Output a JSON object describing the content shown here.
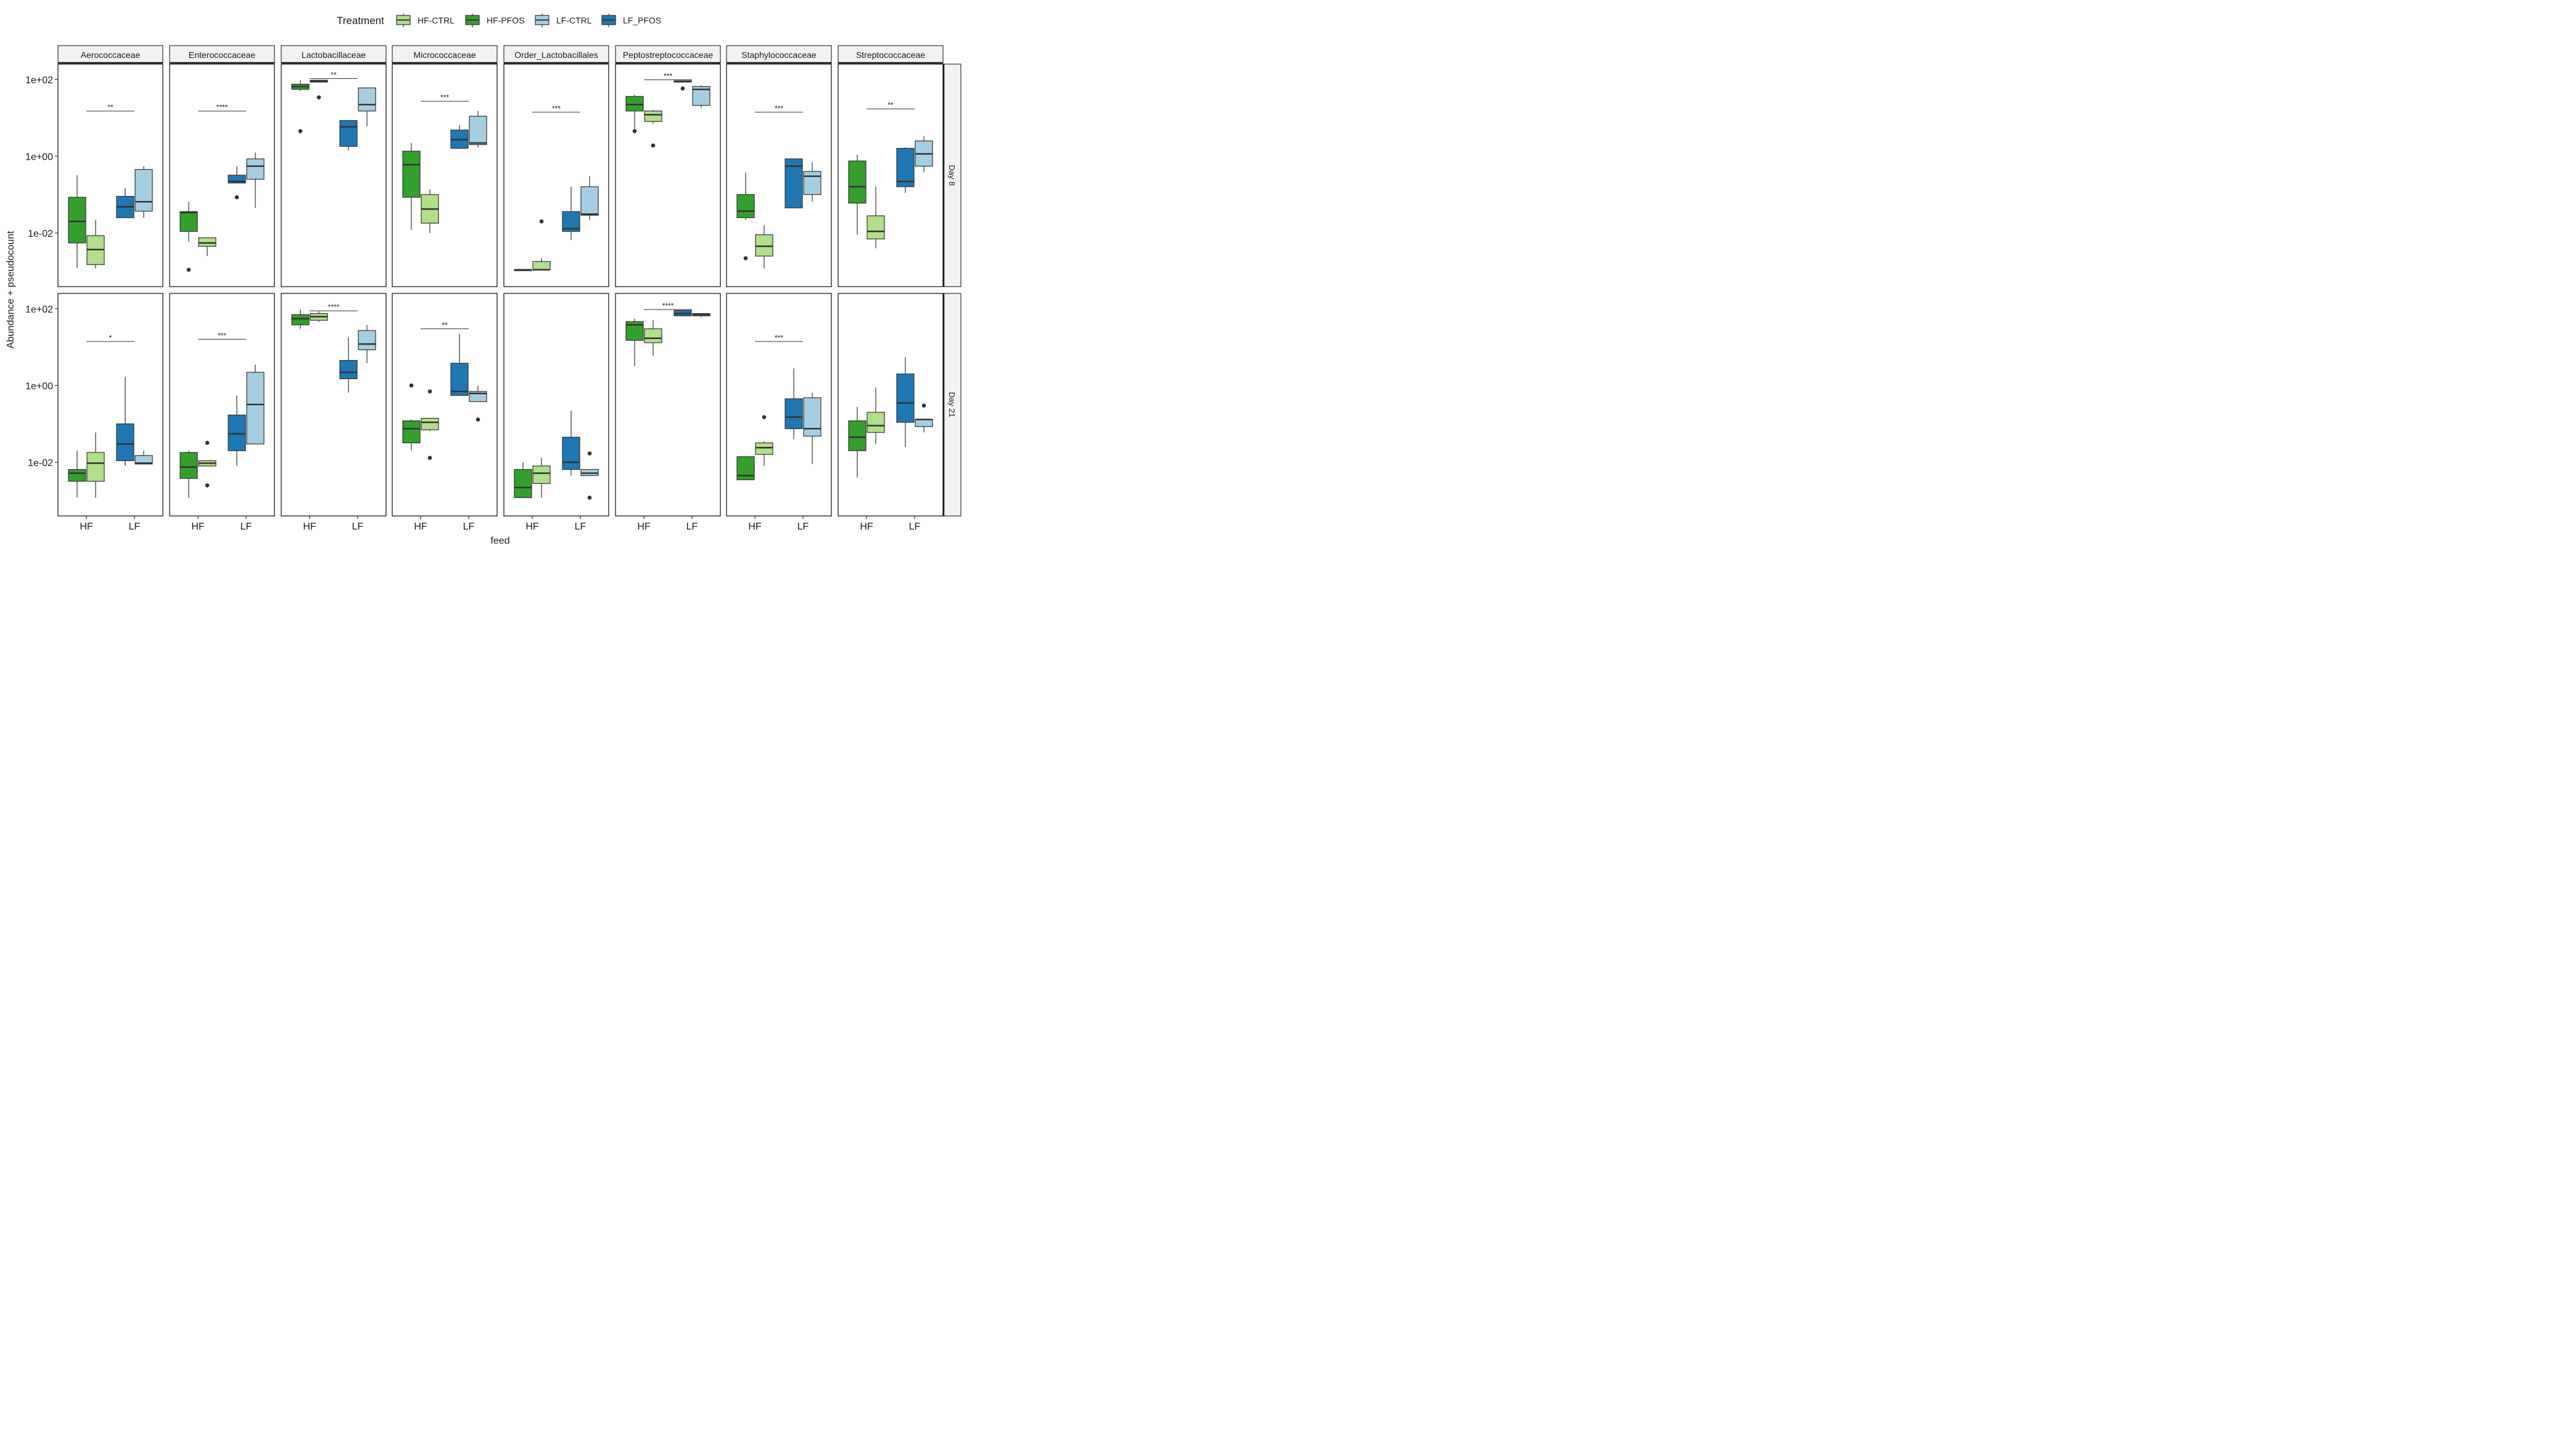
{
  "chart_data": {
    "type": "box",
    "xlabel": "feed",
    "ylabel": "Abundance + pseudocount",
    "y_scale": "log10",
    "ylim": [
      0.0004,
      250
    ],
    "y_ticks": [
      0.01,
      1,
      100
    ],
    "y_tick_labels": [
      "1e-02",
      "1e+00",
      "1e+02"
    ],
    "x_categories": [
      "HF",
      "LF"
    ],
    "legend": {
      "title": "Treatment",
      "position": "top",
      "items": [
        {
          "name": "HF-CTRL",
          "color": "#b2df8a"
        },
        {
          "name": "HF-PFOS",
          "color": "#33a02c"
        },
        {
          "name": "LF-CTRL",
          "color": "#a6cee3"
        },
        {
          "name": "LF_PFOS",
          "color": "#1f78b4"
        }
      ]
    },
    "box_order_note": "within each feed group the first box is PFOS, second is CTRL",
    "columns": [
      "Aerococcaceae",
      "Enterococcaceae",
      "Lactobacillaceae",
      "Micrococcaceae",
      "Order_Lactobacillales",
      "Peptostreptococcaceae",
      "Staphylococcaceae",
      "Streptococcaceae"
    ],
    "rows": [
      "Day 8",
      "Day 21"
    ],
    "panels": [
      {
        "row": "Day 8",
        "col": "Aerococcaceae",
        "sig": "**",
        "sig_y": 15,
        "boxes": [
          {
            "group": "HF-PFOS",
            "min": 0.0012,
            "q1": 0.0055,
            "median": 0.02,
            "q3": 0.085,
            "max": 0.32,
            "outliers": []
          },
          {
            "group": "HF-CTRL",
            "min": 0.0012,
            "q1": 0.0015,
            "median": 0.0037,
            "q3": 0.0085,
            "max": 0.022,
            "outliers": []
          },
          {
            "group": "LF_PFOS",
            "min": 0.025,
            "q1": 0.025,
            "median": 0.048,
            "q3": 0.09,
            "max": 0.15,
            "outliers": []
          },
          {
            "group": "LF-CTRL",
            "min": 0.025,
            "q1": 0.037,
            "median": 0.065,
            "q3": 0.45,
            "max": 0.55,
            "outliers": []
          }
        ]
      },
      {
        "row": "Day 8",
        "col": "Enterococcaceae",
        "sig": "****",
        "sig_y": 15,
        "boxes": [
          {
            "group": "HF-PFOS",
            "min": 0.006,
            "q1": 0.011,
            "median": 0.034,
            "q3": 0.036,
            "max": 0.065,
            "outliers": [
              0.0011
            ]
          },
          {
            "group": "HF-CTRL",
            "min": 0.0025,
            "q1": 0.0045,
            "median": 0.0055,
            "q3": 0.0075,
            "max": 0.0075,
            "outliers": []
          },
          {
            "group": "LF_PFOS",
            "min": 0.2,
            "q1": 0.2,
            "median": 0.22,
            "q3": 0.32,
            "max": 0.55,
            "outliers": [
              0.085
            ]
          },
          {
            "group": "LF-CTRL",
            "min": 0.045,
            "q1": 0.25,
            "median": 0.55,
            "q3": 0.85,
            "max": 1.25,
            "outliers": []
          }
        ]
      },
      {
        "row": "Day 8",
        "col": "Lactobacillaceae",
        "sig": "**",
        "sig_y": 105,
        "boxes": [
          {
            "group": "HF-PFOS",
            "min": 50,
            "q1": 55,
            "median": 65,
            "q3": 75,
            "max": 95,
            "outliers": [
              4.5
            ]
          },
          {
            "group": "HF-CTRL",
            "min": 85,
            "q1": 85,
            "median": 90,
            "q3": 95,
            "max": 95,
            "outliers": [
              34
            ]
          },
          {
            "group": "LF_PFOS",
            "min": 1.4,
            "q1": 1.8,
            "median": 5.8,
            "q3": 8.5,
            "max": 8.5,
            "outliers": []
          },
          {
            "group": "LF-CTRL",
            "min": 6,
            "q1": 15,
            "median": 22,
            "q3": 60,
            "max": 60,
            "outliers": []
          }
        ]
      },
      {
        "row": "Day 8",
        "col": "Micrococcaceae",
        "sig": "***",
        "sig_y": 27,
        "boxes": [
          {
            "group": "HF-PFOS",
            "min": 0.012,
            "q1": 0.085,
            "median": 0.6,
            "q3": 1.35,
            "max": 2.2,
            "outliers": []
          },
          {
            "group": "HF-CTRL",
            "min": 0.01,
            "q1": 0.018,
            "median": 0.042,
            "q3": 0.1,
            "max": 0.14,
            "outliers": []
          },
          {
            "group": "LF_PFOS",
            "min": 1.6,
            "q1": 1.6,
            "median": 2.7,
            "q3": 4.8,
            "max": 6.5,
            "outliers": []
          },
          {
            "group": "LF-CTRL",
            "min": 1.7,
            "q1": 2.0,
            "median": 2.2,
            "q3": 11,
            "max": 15,
            "outliers": []
          }
        ]
      },
      {
        "row": "Day 8",
        "col": "Order_Lactobacillales",
        "sig": "***",
        "sig_y": 14,
        "boxes": [
          {
            "group": "HF-PFOS",
            "min": 0.0011,
            "q1": 0.0011,
            "median": 0.0011,
            "q3": 0.0011,
            "max": 0.0011,
            "outliers": []
          },
          {
            "group": "HF-CTRL",
            "min": 0.0011,
            "q1": 0.0011,
            "median": 0.0011,
            "q3": 0.0018,
            "max": 0.0022,
            "outliers": [
              0.02
            ]
          },
          {
            "group": "LF_PFOS",
            "min": 0.0065,
            "q1": 0.011,
            "median": 0.013,
            "q3": 0.036,
            "max": 0.16,
            "outliers": []
          },
          {
            "group": "LF-CTRL",
            "min": 0.022,
            "q1": 0.029,
            "median": 0.031,
            "q3": 0.16,
            "max": 0.3,
            "outliers": []
          }
        ]
      },
      {
        "row": "Day 8",
        "col": "Peptostreptococcaceae",
        "sig": "***",
        "sig_y": 98,
        "boxes": [
          {
            "group": "HF-PFOS",
            "min": 4.5,
            "q1": 15,
            "median": 22,
            "q3": 36,
            "max": 40,
            "outliers": [
              4.5
            ]
          },
          {
            "group": "HF-CTRL",
            "min": 7,
            "q1": 8,
            "median": 12,
            "q3": 15,
            "max": 16,
            "outliers": [
              1.9
            ]
          },
          {
            "group": "LF_PFOS",
            "min": 85,
            "q1": 85,
            "median": 88,
            "q3": 92,
            "max": 92,
            "outliers": [
              58
            ]
          },
          {
            "group": "LF-CTRL",
            "min": 18,
            "q1": 21,
            "median": 55,
            "q3": 65,
            "max": 70,
            "outliers": []
          }
        ]
      },
      {
        "row": "Day 8",
        "col": "Staphylococcaceae",
        "sig": "***",
        "sig_y": 14,
        "boxes": [
          {
            "group": "HF-PFOS",
            "min": 0.022,
            "q1": 0.025,
            "median": 0.037,
            "q3": 0.1,
            "max": 0.38,
            "outliers": [
              0.0022
            ]
          },
          {
            "group": "HF-CTRL",
            "min": 0.0012,
            "q1": 0.0025,
            "median": 0.0045,
            "q3": 0.009,
            "max": 0.016,
            "outliers": []
          },
          {
            "group": "LF_PFOS",
            "min": 0.045,
            "q1": 0.045,
            "median": 0.55,
            "q3": 0.85,
            "max": 0.85,
            "outliers": []
          },
          {
            "group": "LF-CTRL",
            "min": 0.065,
            "q1": 0.1,
            "median": 0.3,
            "q3": 0.4,
            "max": 0.7,
            "outliers": []
          }
        ]
      },
      {
        "row": "Day 8",
        "col": "Streptococcaceae",
        "sig": "**",
        "sig_y": 17,
        "boxes": [
          {
            "group": "HF-PFOS",
            "min": 0.009,
            "q1": 0.06,
            "median": 0.16,
            "q3": 0.75,
            "max": 1.1,
            "outliers": []
          },
          {
            "group": "HF-CTRL",
            "min": 0.004,
            "q1": 0.007,
            "median": 0.011,
            "q3": 0.028,
            "max": 0.16,
            "outliers": []
          },
          {
            "group": "LF_PFOS",
            "min": 0.11,
            "q1": 0.16,
            "median": 0.22,
            "q3": 1.6,
            "max": 1.7,
            "outliers": []
          },
          {
            "group": "LF-CTRL",
            "min": 0.38,
            "q1": 0.55,
            "median": 1.15,
            "q3": 2.5,
            "max": 3.3,
            "outliers": []
          }
        ]
      },
      {
        "row": "Day 21",
        "col": "Aerococcaceae",
        "sig": "*",
        "sig_y": 14,
        "boxes": [
          {
            "group": "HF-PFOS",
            "min": 0.0012,
            "q1": 0.0032,
            "median": 0.0052,
            "q3": 0.0065,
            "max": 0.02,
            "outliers": []
          },
          {
            "group": "HF-CTRL",
            "min": 0.0012,
            "q1": 0.0032,
            "median": 0.0095,
            "q3": 0.018,
            "max": 0.06,
            "outliers": []
          },
          {
            "group": "LF_PFOS",
            "min": 0.008,
            "q1": 0.011,
            "median": 0.03,
            "q3": 0.1,
            "max": 1.7,
            "outliers": []
          },
          {
            "group": "LF-CTRL",
            "min": 0.009,
            "q1": 0.009,
            "median": 0.0095,
            "q3": 0.015,
            "max": 0.02,
            "outliers": []
          }
        ]
      },
      {
        "row": "Day 21",
        "col": "Enterococcaceae",
        "sig": "***",
        "sig_y": 16,
        "boxes": [
          {
            "group": "HF-PFOS",
            "min": 0.0012,
            "q1": 0.0038,
            "median": 0.0075,
            "q3": 0.018,
            "max": 0.02,
            "outliers": []
          },
          {
            "group": "HF-CTRL",
            "min": 0.008,
            "q1": 0.008,
            "median": 0.0095,
            "q3": 0.011,
            "max": 0.011,
            "outliers": [
              0.0025,
              0.032
            ]
          },
          {
            "group": "LF_PFOS",
            "min": 0.008,
            "q1": 0.02,
            "median": 0.055,
            "q3": 0.17,
            "max": 0.55,
            "outliers": []
          },
          {
            "group": "LF-CTRL",
            "min": 0.03,
            "q1": 0.03,
            "median": 0.32,
            "q3": 2.2,
            "max": 3.5,
            "outliers": []
          }
        ]
      },
      {
        "row": "Day 21",
        "col": "Lactobacillaceae",
        "sig": "****",
        "sig_y": 88,
        "boxes": [
          {
            "group": "HF-PFOS",
            "min": 30,
            "q1": 38,
            "median": 55,
            "q3": 70,
            "max": 95,
            "outliers": []
          },
          {
            "group": "HF-CTRL",
            "min": 45,
            "q1": 50,
            "median": 62,
            "q3": 75,
            "max": 85,
            "outliers": []
          },
          {
            "group": "LF_PFOS",
            "min": 0.65,
            "q1": 1.5,
            "median": 2.2,
            "q3": 4.5,
            "max": 18,
            "outliers": []
          },
          {
            "group": "LF-CTRL",
            "min": 3.8,
            "q1": 8.5,
            "median": 12,
            "q3": 27,
            "max": 38,
            "outliers": []
          }
        ]
      },
      {
        "row": "Day 21",
        "col": "Micrococcaceae",
        "sig": "**",
        "sig_y": 30,
        "boxes": [
          {
            "group": "HF-PFOS",
            "min": 0.02,
            "q1": 0.032,
            "median": 0.075,
            "q3": 0.12,
            "max": 0.13,
            "outliers": [
              1.0
            ]
          },
          {
            "group": "HF-CTRL",
            "min": 0.065,
            "q1": 0.07,
            "median": 0.11,
            "q3": 0.14,
            "max": 0.14,
            "outliers": [
              0.013,
              0.7
            ]
          },
          {
            "group": "LF_PFOS",
            "min": 0.55,
            "q1": 0.55,
            "median": 0.7,
            "q3": 3.8,
            "max": 22,
            "outliers": []
          },
          {
            "group": "LF-CTRL",
            "min": 0.38,
            "q1": 0.38,
            "median": 0.62,
            "q3": 0.7,
            "max": 1.0,
            "outliers": [
              0.13
            ]
          }
        ]
      },
      {
        "row": "Day 21",
        "col": "Order_Lactobacillales",
        "sig": "",
        "sig_y": 0,
        "boxes": [
          {
            "group": "HF-PFOS",
            "min": 0.0012,
            "q1": 0.0012,
            "median": 0.0022,
            "q3": 0.0065,
            "max": 0.01,
            "outliers": []
          },
          {
            "group": "HF-CTRL",
            "min": 0.0012,
            "q1": 0.0028,
            "median": 0.0052,
            "q3": 0.008,
            "max": 0.013,
            "outliers": []
          },
          {
            "group": "LF_PFOS",
            "min": 0.0045,
            "q1": 0.0065,
            "median": 0.01,
            "q3": 0.045,
            "max": 0.22,
            "outliers": []
          },
          {
            "group": "LF-CTRL",
            "min": 0.0045,
            "q1": 0.0045,
            "median": 0.0052,
            "q3": 0.0065,
            "max": 0.0065,
            "outliers": [
              0.0012,
              0.017
            ]
          }
        ]
      },
      {
        "row": "Day 21",
        "col": "Peptostreptococcaceae",
        "sig": "****",
        "sig_y": 95,
        "boxes": [
          {
            "group": "HF-PFOS",
            "min": 3.2,
            "q1": 15,
            "median": 38,
            "q3": 46,
            "max": 55,
            "outliers": []
          },
          {
            "group": "HF-CTRL",
            "min": 6,
            "q1": 13,
            "median": 17,
            "q3": 30,
            "max": 50,
            "outliers": []
          },
          {
            "group": "LF_PFOS",
            "min": 65,
            "q1": 65,
            "median": 75,
            "q3": 90,
            "max": 95,
            "outliers": []
          },
          {
            "group": "LF-CTRL",
            "min": 60,
            "q1": 65,
            "median": 70,
            "q3": 75,
            "max": 75,
            "outliers": []
          }
        ]
      },
      {
        "row": "Day 21",
        "col": "Staphylococcaceae",
        "sig": "***",
        "sig_y": 14,
        "boxes": [
          {
            "group": "HF-PFOS",
            "min": 0.0035,
            "q1": 0.0035,
            "median": 0.0045,
            "q3": 0.014,
            "max": 0.014,
            "outliers": []
          },
          {
            "group": "HF-CTRL",
            "min": 0.008,
            "q1": 0.016,
            "median": 0.024,
            "q3": 0.032,
            "max": 0.035,
            "outliers": [
              0.15
            ]
          },
          {
            "group": "LF_PFOS",
            "min": 0.04,
            "q1": 0.075,
            "median": 0.15,
            "q3": 0.45,
            "max": 2.8,
            "outliers": []
          },
          {
            "group": "LF-CTRL",
            "min": 0.009,
            "q1": 0.048,
            "median": 0.075,
            "q3": 0.48,
            "max": 0.65,
            "outliers": []
          }
        ]
      },
      {
        "row": "Day 21",
        "col": "Streptococcaceae",
        "sig": "",
        "sig_y": 0,
        "boxes": [
          {
            "group": "HF-PFOS",
            "min": 0.004,
            "q1": 0.02,
            "median": 0.045,
            "q3": 0.12,
            "max": 0.28,
            "outliers": []
          },
          {
            "group": "HF-CTRL",
            "min": 0.03,
            "q1": 0.06,
            "median": 0.09,
            "q3": 0.2,
            "max": 0.9,
            "outliers": []
          },
          {
            "group": "LF_PFOS",
            "min": 0.025,
            "q1": 0.11,
            "median": 0.35,
            "q3": 2.0,
            "max": 5.5,
            "outliers": []
          },
          {
            "group": "LF-CTRL",
            "min": 0.06,
            "q1": 0.085,
            "median": 0.13,
            "q3": 0.13,
            "max": 0.13,
            "outliers": [
              0.3
            ]
          }
        ]
      }
    ]
  }
}
